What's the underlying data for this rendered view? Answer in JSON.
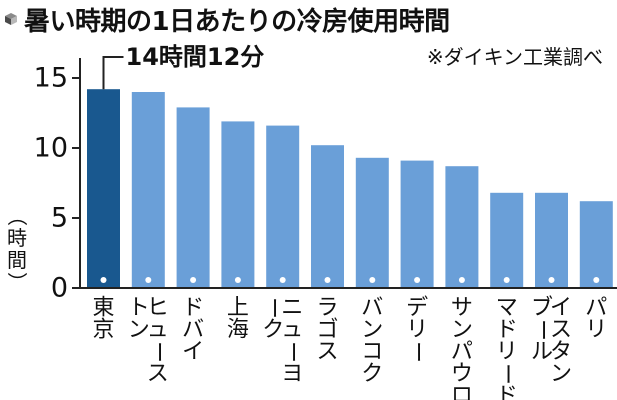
{
  "colors": {
    "highlight_bar": "#19588f",
    "bar": "#6a9fd8",
    "axis": "#222222",
    "text": "#111111",
    "marker": "#ffffff"
  },
  "icons": {
    "title": "cube-icon"
  },
  "chart_data": {
    "type": "bar",
    "title": "暑い時期の1日あたりの冷房使用時間",
    "source": "※ダイキン工業調べ",
    "ylabel": "（時間）",
    "ylabel_chars": [
      "（",
      "時",
      "間",
      "）"
    ],
    "xlabel": "",
    "ylim": [
      0,
      15
    ],
    "yticks": [
      "0",
      "5",
      "10",
      "15"
    ],
    "grid": false,
    "legend": "none",
    "annotation": {
      "text": "14時間12分",
      "category": "東京"
    },
    "highlight_index": 0,
    "categories": [
      "東京",
      "ヒューストン",
      "ドバイ",
      "上海",
      "ニューヨーク",
      "ラゴス",
      "バンコク",
      "デリー",
      "サンパウロ",
      "マドリード",
      "イスタンブール",
      "パリ"
    ],
    "category_columns": [
      [
        [
          "東京"
        ]
      ],
      [
        [
          "ヒュース"
        ],
        [
          "トン"
        ]
      ],
      [
        [
          "ドバイ"
        ]
      ],
      [
        [
          "上海"
        ]
      ],
      [
        [
          "ニューヨ"
        ],
        [
          "ーク"
        ]
      ],
      [
        [
          "ラゴス"
        ]
      ],
      [
        [
          "バンコク"
        ]
      ],
      [
        [
          "デリー"
        ]
      ],
      [
        [
          "サンパウロ"
        ]
      ],
      [
        [
          "マドリード"
        ]
      ],
      [
        [
          "イスタン"
        ],
        [
          "ブール"
        ]
      ],
      [
        [
          "パリ"
        ]
      ]
    ],
    "values": [
      14.2,
      14.0,
      12.9,
      11.9,
      11.6,
      10.2,
      9.3,
      9.1,
      8.7,
      6.8,
      6.8,
      6.2
    ]
  }
}
